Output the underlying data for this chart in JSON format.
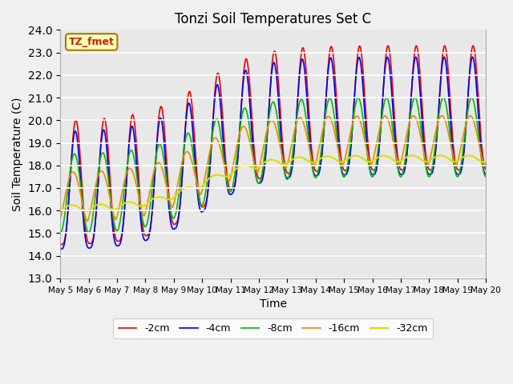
{
  "title": "Tonzi Soil Temperatures Set C",
  "xlabel": "Time",
  "ylabel": "Soil Temperature (C)",
  "ylim": [
    13.0,
    24.0
  ],
  "yticks": [
    13.0,
    14.0,
    15.0,
    16.0,
    17.0,
    18.0,
    19.0,
    20.0,
    21.0,
    22.0,
    23.0,
    24.0
  ],
  "annotation": "TZ_fmet",
  "colors": {
    "-2cm": "#ee0000",
    "-4cm": "#0000ee",
    "-8cm": "#00bb00",
    "-16cm": "#ee8800",
    "-32cm": "#dddd00"
  },
  "legend_labels": [
    "-2cm",
    "-4cm",
    "-8cm",
    "-16cm",
    "-32cm"
  ],
  "bg_color": "#e8e8e8",
  "plot_bg_color": "#e8e8e8",
  "figsize": [
    6.4,
    4.8
  ],
  "dpi": 100
}
